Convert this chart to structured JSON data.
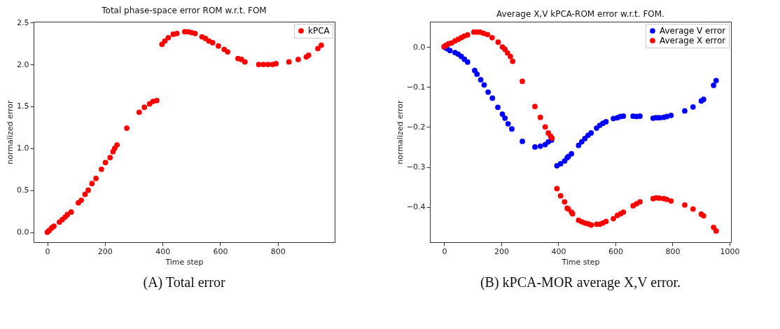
{
  "chart_data": [
    {
      "type": "scatter",
      "title": "Total phase-space error ROM w.r.t. FOM",
      "xlabel": "Time step",
      "ylabel": "normalized error",
      "xlim": [
        -47.5,
        997.5
      ],
      "ylim": [
        -0.12,
        2.51
      ],
      "xticks": [
        0,
        200,
        400,
        600,
        800
      ],
      "yticks": [
        {
          "value": 0,
          "label": "0.0"
        },
        0.5,
        {
          "value": 1,
          "label": "1.0"
        },
        1.5,
        {
          "value": 2,
          "label": "2.0"
        },
        2.5
      ],
      "grid": false,
      "legend": "top right",
      "marker": "circle",
      "annotations": [
        "(A) Total error"
      ],
      "series": [
        {
          "name": "kPCA",
          "color": "#ff0000",
          "x": [
            0,
            7,
            15,
            23,
            42,
            52,
            62,
            70,
            83,
            108,
            118,
            131,
            142,
            155,
            169,
            188,
            202,
            218,
            228,
            234,
            242,
            276,
            319,
            337,
            355,
            367,
            380,
            398,
            408,
            420,
            437,
            450,
            477,
            489,
            501,
            513,
            537,
            549,
            561,
            574,
            594,
            614,
            626,
            662,
            674,
            686,
            734,
            750,
            766,
            782,
            794,
            839,
            871,
            899,
            907,
            939,
            951
          ],
          "values": [
            0,
            0.02,
            0.05,
            0.07,
            0.12,
            0.15,
            0.18,
            0.21,
            0.24,
            0.35,
            0.38,
            0.45,
            0.5,
            0.58,
            0.64,
            0.75,
            0.83,
            0.89,
            0.96,
            1.0,
            1.04,
            1.24,
            1.43,
            1.49,
            1.53,
            1.56,
            1.57,
            2.24,
            2.28,
            2.32,
            2.36,
            2.37,
            2.39,
            2.39,
            2.38,
            2.37,
            2.33,
            2.31,
            2.28,
            2.26,
            2.22,
            2.18,
            2.15,
            2.07,
            2.06,
            2.03,
            2.0,
            2.0,
            2.0,
            2.0,
            2.01,
            2.03,
            2.06,
            2.09,
            2.11,
            2.19,
            2.23
          ]
        }
      ]
    },
    {
      "type": "scatter",
      "title": "Average X,V kPCA-ROM error w.r.t. FOM.",
      "xlabel": "Time step",
      "ylabel": "normalized error",
      "xlim": [
        -50,
        1005
      ],
      "ylim": [
        -0.488,
        0.063
      ],
      "xticks": [
        0,
        200,
        400,
        600,
        800,
        1000
      ],
      "yticks": [
        {
          "value": 0,
          "label": "0.0"
        },
        {
          "value": -0.1,
          "label": "−0.1"
        },
        {
          "value": -0.2,
          "label": "−0.2"
        },
        {
          "value": -0.3,
          "label": "−0.3"
        },
        {
          "value": -0.4,
          "label": "−0.4"
        }
      ],
      "grid": false,
      "legend": "top right",
      "marker": "circle",
      "annotations": [
        "(B) kPCA-MOR average X,V error."
      ],
      "series": [
        {
          "name": "Average V error",
          "color": "#0000ff",
          "x": [
            0,
            9,
            20,
            38,
            49,
            60,
            71,
            82,
            107,
            115,
            128,
            140,
            154,
            169,
            188,
            204,
            213,
            224,
            237,
            274,
            318,
            337,
            354,
            365,
            376,
            395,
            408,
            422,
            431,
            435,
            446,
            471,
            482,
            493,
            504,
            515,
            534,
            545,
            556,
            567,
            593,
            607,
            618,
            628,
            662,
            674,
            686,
            732,
            743,
            754,
            769,
            780,
            795,
            843,
            872,
            901,
            909,
            944,
            953
          ],
          "values": [
            0,
            -0.004,
            -0.009,
            -0.014,
            -0.018,
            -0.024,
            -0.031,
            -0.038,
            -0.059,
            -0.068,
            -0.082,
            -0.095,
            -0.113,
            -0.128,
            -0.151,
            -0.168,
            -0.178,
            -0.192,
            -0.205,
            -0.236,
            -0.25,
            -0.248,
            -0.244,
            -0.237,
            -0.233,
            -0.297,
            -0.292,
            -0.285,
            -0.277,
            -0.274,
            -0.267,
            -0.246,
            -0.237,
            -0.229,
            -0.221,
            -0.215,
            -0.203,
            -0.196,
            -0.191,
            -0.187,
            -0.179,
            -0.177,
            -0.174,
            -0.173,
            -0.173,
            -0.174,
            -0.173,
            -0.178,
            -0.177,
            -0.177,
            -0.176,
            -0.174,
            -0.171,
            -0.16,
            -0.15,
            -0.135,
            -0.131,
            -0.096,
            -0.084
          ]
        },
        {
          "name": "Average X error",
          "color": "#ff0000",
          "x": [
            0,
            7,
            16,
            26,
            38,
            49,
            60,
            70,
            82,
            104,
            115,
            126,
            138,
            152,
            168,
            189,
            204,
            213,
            222,
            232,
            240,
            274,
            318,
            337,
            354,
            365,
            373,
            378,
            395,
            408,
            422,
            431,
            435,
            446,
            450,
            471,
            482,
            493,
            504,
            515,
            534,
            545,
            556,
            567,
            593,
            607,
            618,
            628,
            662,
            674,
            686,
            732,
            743,
            754,
            769,
            780,
            795,
            843,
            872,
            901,
            909,
            944,
            953
          ],
          "values": [
            0.001,
            0.004,
            0.008,
            0.01,
            0.015,
            0.019,
            0.023,
            0.027,
            0.03,
            0.037,
            0.037,
            0.037,
            0.034,
            0.031,
            0.023,
            0.012,
            0.0,
            -0.006,
            -0.015,
            -0.024,
            -0.036,
            -0.086,
            -0.149,
            -0.176,
            -0.2,
            -0.215,
            -0.223,
            -0.228,
            -0.354,
            -0.372,
            -0.387,
            -0.403,
            -0.405,
            -0.413,
            -0.417,
            -0.433,
            -0.437,
            -0.44,
            -0.442,
            -0.445,
            -0.443,
            -0.443,
            -0.44,
            -0.436,
            -0.429,
            -0.421,
            -0.417,
            -0.413,
            -0.397,
            -0.392,
            -0.387,
            -0.379,
            -0.377,
            -0.378,
            -0.379,
            -0.381,
            -0.385,
            -0.395,
            -0.405,
            -0.418,
            -0.422,
            -0.451,
            -0.46
          ]
        }
      ]
    }
  ]
}
